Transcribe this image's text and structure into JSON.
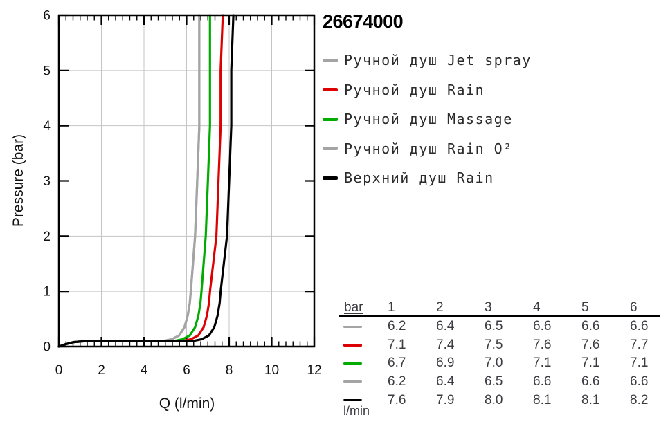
{
  "title": "26674000",
  "chart_data": {
    "type": "line",
    "xlabel": "Q (l/min)",
    "ylabel": "Pressure (bar)",
    "xlim": [
      0,
      12
    ],
    "ylim": [
      0,
      6
    ],
    "xticks": [
      0,
      2,
      4,
      6,
      8,
      10,
      12
    ],
    "yticks": [
      0,
      1,
      2,
      3,
      4,
      5,
      6
    ],
    "x_minor_per_major": 6,
    "grid": true,
    "legend_position": "right",
    "colors": {
      "grid": "#c4c4c4",
      "frame": "#000000",
      "tick_label": "#111111"
    },
    "bars": [
      1,
      2,
      3,
      4,
      5,
      6
    ],
    "series": [
      {
        "name": "Ручной душ Jet spray",
        "color": "#a4a4a4",
        "flow_at_bar": [
          6.2,
          6.4,
          6.5,
          6.6,
          6.6,
          6.6
        ],
        "points": [
          [
            0,
            0
          ],
          [
            0.3,
            0.04
          ],
          [
            0.7,
            0.08
          ],
          [
            1.3,
            0.1
          ],
          [
            4.9,
            0.1
          ],
          [
            5.3,
            0.13
          ],
          [
            5.65,
            0.2
          ],
          [
            5.9,
            0.35
          ],
          [
            6.05,
            0.55
          ],
          [
            6.15,
            0.78
          ],
          [
            6.2,
            1
          ],
          [
            6.4,
            2
          ],
          [
            6.5,
            3
          ],
          [
            6.6,
            4
          ],
          [
            6.6,
            5
          ],
          [
            6.6,
            6
          ]
        ]
      },
      {
        "name": "Ручной душ Rain",
        "color": "#dd0000",
        "flow_at_bar": [
          7.1,
          7.4,
          7.5,
          7.6,
          7.6,
          7.7
        ],
        "points": [
          [
            0,
            0
          ],
          [
            0.3,
            0.04
          ],
          [
            0.7,
            0.08
          ],
          [
            1.3,
            0.1
          ],
          [
            5.8,
            0.1
          ],
          [
            6.2,
            0.13
          ],
          [
            6.55,
            0.2
          ],
          [
            6.8,
            0.35
          ],
          [
            6.95,
            0.55
          ],
          [
            7.05,
            0.78
          ],
          [
            7.1,
            1
          ],
          [
            7.4,
            2
          ],
          [
            7.5,
            3
          ],
          [
            7.6,
            4
          ],
          [
            7.6,
            5
          ],
          [
            7.7,
            6
          ]
        ]
      },
      {
        "name": "Ручной душ Massage",
        "color": "#00ac00",
        "flow_at_bar": [
          6.7,
          6.9,
          7.0,
          7.1,
          7.1,
          7.1
        ],
        "points": [
          [
            0,
            0
          ],
          [
            0.3,
            0.04
          ],
          [
            0.7,
            0.08
          ],
          [
            1.3,
            0.1
          ],
          [
            5.4,
            0.1
          ],
          [
            5.8,
            0.13
          ],
          [
            6.15,
            0.2
          ],
          [
            6.4,
            0.35
          ],
          [
            6.55,
            0.55
          ],
          [
            6.65,
            0.78
          ],
          [
            6.7,
            1
          ],
          [
            6.9,
            2
          ],
          [
            7.0,
            3
          ],
          [
            7.1,
            4
          ],
          [
            7.1,
            5
          ],
          [
            7.1,
            6
          ]
        ]
      },
      {
        "name": "Ручной душ Rain O²",
        "color": "#a4a4a4",
        "flow_at_bar": [
          6.2,
          6.4,
          6.5,
          6.6,
          6.6,
          6.6
        ],
        "points": [
          [
            0,
            0
          ],
          [
            0.3,
            0.04
          ],
          [
            0.7,
            0.08
          ],
          [
            1.3,
            0.1
          ],
          [
            4.9,
            0.1
          ],
          [
            5.3,
            0.13
          ],
          [
            5.65,
            0.2
          ],
          [
            5.9,
            0.35
          ],
          [
            6.05,
            0.55
          ],
          [
            6.15,
            0.78
          ],
          [
            6.2,
            1
          ],
          [
            6.4,
            2
          ],
          [
            6.5,
            3
          ],
          [
            6.6,
            4
          ],
          [
            6.6,
            5
          ],
          [
            6.6,
            6
          ]
        ]
      },
      {
        "name": "Верхний душ Rain",
        "color": "#000000",
        "flow_at_bar": [
          7.6,
          7.9,
          8.0,
          8.1,
          8.1,
          8.2
        ],
        "points": [
          [
            0,
            0
          ],
          [
            0.3,
            0.04
          ],
          [
            0.7,
            0.08
          ],
          [
            1.3,
            0.1
          ],
          [
            6.3,
            0.1
          ],
          [
            6.7,
            0.13
          ],
          [
            7.05,
            0.2
          ],
          [
            7.3,
            0.35
          ],
          [
            7.45,
            0.55
          ],
          [
            7.55,
            0.78
          ],
          [
            7.6,
            1
          ],
          [
            7.9,
            2
          ],
          [
            8.0,
            3
          ],
          [
            8.1,
            4
          ],
          [
            8.1,
            5
          ],
          [
            8.2,
            6
          ]
        ]
      }
    ]
  },
  "table": {
    "unit_header": "bar",
    "columns": [
      "1",
      "2",
      "3",
      "4",
      "5",
      "6"
    ],
    "rows": [
      {
        "values": [
          "6.2",
          "6.4",
          "6.5",
          "6.6",
          "6.6",
          "6.6"
        ]
      },
      {
        "values": [
          "7.1",
          "7.4",
          "7.5",
          "7.6",
          "7.6",
          "7.7"
        ]
      },
      {
        "values": [
          "6.7",
          "6.9",
          "7.0",
          "7.1",
          "7.1",
          "7.1"
        ]
      },
      {
        "values": [
          "6.2",
          "6.4",
          "6.5",
          "6.6",
          "6.6",
          "6.6"
        ]
      },
      {
        "values": [
          "7.6",
          "7.9",
          "8.0",
          "8.1",
          "8.1",
          "8.2"
        ]
      }
    ],
    "footer_unit": "l/min"
  }
}
